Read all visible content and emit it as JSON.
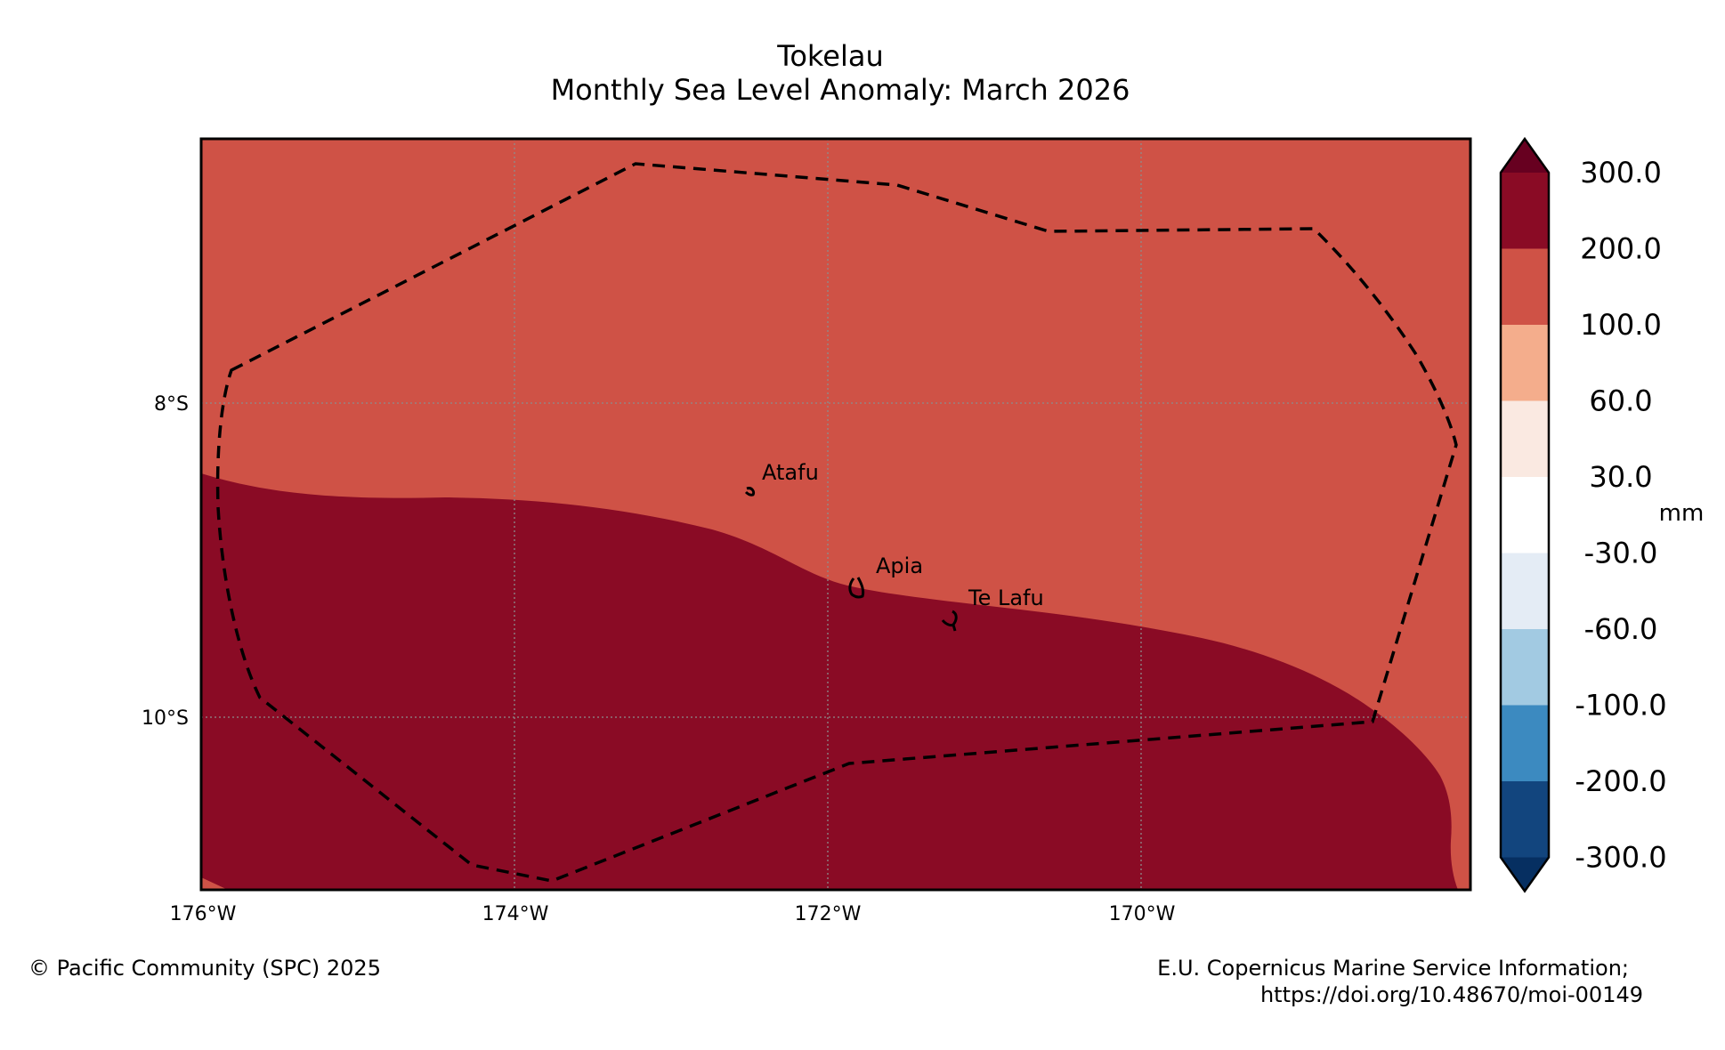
{
  "title": {
    "line1": "Tokelau",
    "line2": "Monthly Sea Level Anomaly: March 2026"
  },
  "map": {
    "projection": "PlateCarree",
    "lon_ticks": [
      "176°W",
      "174°W",
      "172°W",
      "170°W"
    ],
    "lat_ticks": [
      "8°S",
      "10°S"
    ],
    "gridlines": true,
    "regions": [
      {
        "name": "positive-anomaly-band",
        "value_range_mm": "100.0 to 200.0",
        "color": "#cf5246"
      },
      {
        "name": "high-anomaly-band",
        "value_range_mm": "200.0 to 300.0",
        "color": "#8a0b25"
      }
    ],
    "eez_boundary_style": "dashed",
    "places": [
      {
        "name": "Atafu"
      },
      {
        "name": "Apia"
      },
      {
        "name": "Te Lafu"
      }
    ]
  },
  "colorbar": {
    "unit": "mm",
    "extend": "both",
    "levels": [
      "300.0",
      "200.0",
      "100.0",
      "60.0",
      "30.0",
      "-30.0",
      "-60.0",
      "-100.0",
      "-200.0",
      "-300.0"
    ],
    "colors": [
      "#8a0b25",
      "#cf5246",
      "#f4ad8c",
      "#fae9e1",
      "#ffffff",
      "#e4ecf5",
      "#a2cae2",
      "#3c8ac0",
      "#12457e"
    ],
    "over_color": "#670020",
    "under_color": "#062f61"
  },
  "credits": {
    "left": "© Pacific Community (SPC) 2025",
    "right_line1": "E.U. Copernicus Marine Service Information;",
    "right_line2": "https://doi.org/10.48670/moi-00149"
  }
}
